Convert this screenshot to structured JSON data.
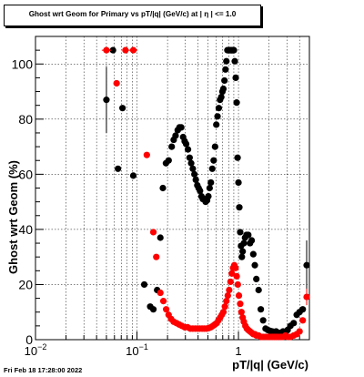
{
  "title": {
    "prefix": "Ghost wrt Geom for Primary vs pT/|q| (GeV/c) at |",
    "eta": "η",
    "suffix": "| <= 1.0"
  },
  "timestamp": "Fri Feb 18 17:28:00 2022",
  "colors": {
    "series_black": "#000000",
    "series_red": "#ff0000",
    "grid": "#000000",
    "frame": "#000000"
  },
  "chart_data": {
    "type": "scatter",
    "title": "Ghost wrt Geom for Primary vs pT/|q| (GeV/c) at | η | <= 1.0",
    "xlabel": "pT/|q| (GeV/c)",
    "ylabel": "Ghost wrt Geom (%)",
    "xscale": "log",
    "xlim": [
      0.01,
      5
    ],
    "ylim": [
      0,
      110
    ],
    "grid": true,
    "xticks": [
      {
        "value": 0.01,
        "base": "10",
        "exp": "−2"
      },
      {
        "value": 0.1,
        "base": "10",
        "exp": "−1"
      },
      {
        "value": 1,
        "base": "1",
        "exp": ""
      }
    ],
    "yticks": [
      0,
      20,
      40,
      60,
      80,
      100
    ],
    "series": [
      {
        "color": "#000000",
        "points": [
          {
            "x": 0.05,
            "y": 87,
            "err": 12
          },
          {
            "x": 0.058,
            "y": 105
          },
          {
            "x": 0.065,
            "y": 62
          },
          {
            "x": 0.072,
            "y": 84
          },
          {
            "x": 0.092,
            "y": 59.5
          },
          {
            "x": 0.118,
            "y": 20
          },
          {
            "x": 0.135,
            "y": 12
          },
          {
            "x": 0.145,
            "y": 11
          },
          {
            "x": 0.158,
            "y": 18
          },
          {
            "x": 0.17,
            "y": 37
          },
          {
            "x": 0.18,
            "y": 55
          },
          {
            "x": 0.193,
            "y": 64
          },
          {
            "x": 0.205,
            "y": 65
          },
          {
            "x": 0.22,
            "y": 70
          },
          {
            "x": 0.23,
            "y": 72.5
          },
          {
            "x": 0.24,
            "y": 74
          },
          {
            "x": 0.252,
            "y": 76
          },
          {
            "x": 0.262,
            "y": 77
          },
          {
            "x": 0.273,
            "y": 77
          },
          {
            "x": 0.285,
            "y": 73.5
          },
          {
            "x": 0.295,
            "y": 72
          },
          {
            "x": 0.305,
            "y": 71
          },
          {
            "x": 0.318,
            "y": 69
          },
          {
            "x": 0.33,
            "y": 66
          },
          {
            "x": 0.342,
            "y": 64
          },
          {
            "x": 0.355,
            "y": 62
          },
          {
            "x": 0.368,
            "y": 60
          },
          {
            "x": 0.38,
            "y": 58
          },
          {
            "x": 0.393,
            "y": 56
          },
          {
            "x": 0.405,
            "y": 55
          },
          {
            "x": 0.418,
            "y": 54
          },
          {
            "x": 0.432,
            "y": 52
          },
          {
            "x": 0.446,
            "y": 51
          },
          {
            "x": 0.46,
            "y": 51
          },
          {
            "x": 0.475,
            "y": 50
          },
          {
            "x": 0.49,
            "y": 50.5
          },
          {
            "x": 0.505,
            "y": 52
          },
          {
            "x": 0.52,
            "y": 55
          },
          {
            "x": 0.535,
            "y": 57
          },
          {
            "x": 0.552,
            "y": 62
          },
          {
            "x": 0.57,
            "y": 65
          },
          {
            "x": 0.588,
            "y": 70
          },
          {
            "x": 0.605,
            "y": 78
          },
          {
            "x": 0.622,
            "y": 81
          },
          {
            "x": 0.64,
            "y": 84
          },
          {
            "x": 0.658,
            "y": 87
          },
          {
            "x": 0.677,
            "y": 88
          },
          {
            "x": 0.695,
            "y": 90
          },
          {
            "x": 0.71,
            "y": 91
          },
          {
            "x": 0.728,
            "y": 94
          },
          {
            "x": 0.745,
            "y": 98
          },
          {
            "x": 0.76,
            "y": 101
          },
          {
            "x": 0.778,
            "y": 105
          },
          {
            "x": 0.795,
            "y": 105
          },
          {
            "x": 0.812,
            "y": 105
          },
          {
            "x": 0.83,
            "y": 105
          },
          {
            "x": 0.848,
            "y": 105
          },
          {
            "x": 0.866,
            "y": 105
          },
          {
            "x": 0.884,
            "y": 105
          },
          {
            "x": 0.902,
            "y": 105
          },
          {
            "x": 0.92,
            "y": 101
          },
          {
            "x": 0.94,
            "y": 95
          },
          {
            "x": 0.96,
            "y": 86
          },
          {
            "x": 0.98,
            "y": 66
          },
          {
            "x": 1.0,
            "y": 57
          },
          {
            "x": 1.02,
            "y": 48
          },
          {
            "x": 1.04,
            "y": 39
          },
          {
            "x": 1.06,
            "y": 34
          },
          {
            "x": 1.08,
            "y": 30
          },
          {
            "x": 1.1,
            "y": 32
          },
          {
            "x": 1.13,
            "y": 35
          },
          {
            "x": 1.16,
            "y": 37
          },
          {
            "x": 1.2,
            "y": 38
          },
          {
            "x": 1.25,
            "y": 38
          },
          {
            "x": 1.3,
            "y": 35
          },
          {
            "x": 1.35,
            "y": 36
          },
          {
            "x": 1.4,
            "y": 31
          },
          {
            "x": 1.45,
            "y": 27
          },
          {
            "x": 1.5,
            "y": 22
          },
          {
            "x": 1.58,
            "y": 18
          },
          {
            "x": 1.66,
            "y": 11
          },
          {
            "x": 1.75,
            "y": 7
          },
          {
            "x": 1.85,
            "y": 4
          },
          {
            "x": 1.95,
            "y": 3.5
          },
          {
            "x": 2.05,
            "y": 3.2
          },
          {
            "x": 2.15,
            "y": 3
          },
          {
            "x": 2.25,
            "y": 2.8
          },
          {
            "x": 2.35,
            "y": 3
          },
          {
            "x": 2.45,
            "y": 2.5
          },
          {
            "x": 2.6,
            "y": 2.5
          },
          {
            "x": 2.75,
            "y": 3
          },
          {
            "x": 2.9,
            "y": 2.5
          },
          {
            "x": 3.05,
            "y": 3.5
          },
          {
            "x": 3.25,
            "y": 5
          },
          {
            "x": 3.5,
            "y": 6
          },
          {
            "x": 3.75,
            "y": 9
          },
          {
            "x": 4.0,
            "y": 10
          },
          {
            "x": 4.3,
            "y": 11
          },
          {
            "x": 4.7,
            "y": 27,
            "err": 9
          }
        ]
      },
      {
        "color": "#ff0000",
        "points": [
          {
            "x": 0.05,
            "y": 105,
            "xerr": [
              0.045,
              0.056
            ]
          },
          {
            "x": 0.063,
            "y": 93
          },
          {
            "x": 0.077,
            "y": 105
          },
          {
            "x": 0.092,
            "y": 105,
            "xerr": [
              0.083,
              0.101
            ]
          },
          {
            "x": 0.125,
            "y": 67
          },
          {
            "x": 0.145,
            "y": 39
          },
          {
            "x": 0.155,
            "y": 30
          },
          {
            "x": 0.17,
            "y": 17
          },
          {
            "x": 0.182,
            "y": 14
          },
          {
            "x": 0.194,
            "y": 11
          },
          {
            "x": 0.205,
            "y": 9
          },
          {
            "x": 0.217,
            "y": 7.5
          },
          {
            "x": 0.23,
            "y": 6.5
          },
          {
            "x": 0.245,
            "y": 6
          },
          {
            "x": 0.26,
            "y": 5.5
          },
          {
            "x": 0.277,
            "y": 5
          },
          {
            "x": 0.295,
            "y": 4.5
          },
          {
            "x": 0.315,
            "y": 4.5
          },
          {
            "x": 0.335,
            "y": 4
          },
          {
            "x": 0.355,
            "y": 4
          },
          {
            "x": 0.375,
            "y": 4
          },
          {
            "x": 0.395,
            "y": 4
          },
          {
            "x": 0.415,
            "y": 4
          },
          {
            "x": 0.438,
            "y": 4
          },
          {
            "x": 0.46,
            "y": 4
          },
          {
            "x": 0.485,
            "y": 4
          },
          {
            "x": 0.51,
            "y": 4.2
          },
          {
            "x": 0.535,
            "y": 4.5
          },
          {
            "x": 0.56,
            "y": 5
          },
          {
            "x": 0.585,
            "y": 5.5
          },
          {
            "x": 0.61,
            "y": 6
          },
          {
            "x": 0.635,
            "y": 7
          },
          {
            "x": 0.66,
            "y": 8
          },
          {
            "x": 0.685,
            "y": 9
          },
          {
            "x": 0.71,
            "y": 10
          },
          {
            "x": 0.735,
            "y": 12
          },
          {
            "x": 0.76,
            "y": 14
          },
          {
            "x": 0.785,
            "y": 16
          },
          {
            "x": 0.81,
            "y": 18
          },
          {
            "x": 0.835,
            "y": 21
          },
          {
            "x": 0.86,
            "y": 24
          },
          {
            "x": 0.885,
            "y": 26
          },
          {
            "x": 0.91,
            "y": 27
          },
          {
            "x": 0.935,
            "y": 26
          },
          {
            "x": 0.96,
            "y": 23
          },
          {
            "x": 0.985,
            "y": 20
          },
          {
            "x": 1.01,
            "y": 16
          },
          {
            "x": 1.04,
            "y": 13
          },
          {
            "x": 1.07,
            "y": 10
          },
          {
            "x": 1.1,
            "y": 8
          },
          {
            "x": 1.13,
            "y": 6.5
          },
          {
            "x": 1.17,
            "y": 5
          },
          {
            "x": 1.21,
            "y": 4
          },
          {
            "x": 1.25,
            "y": 3.5
          },
          {
            "x": 1.3,
            "y": 3
          },
          {
            "x": 1.35,
            "y": 2.5
          },
          {
            "x": 1.4,
            "y": 2
          },
          {
            "x": 1.45,
            "y": 2
          },
          {
            "x": 1.5,
            "y": 1.5
          },
          {
            "x": 1.58,
            "y": 1.5
          },
          {
            "x": 1.66,
            "y": 1
          },
          {
            "x": 1.75,
            "y": 1
          },
          {
            "x": 1.85,
            "y": 1
          },
          {
            "x": 1.95,
            "y": 1
          },
          {
            "x": 2.05,
            "y": 1
          },
          {
            "x": 2.15,
            "y": 1
          },
          {
            "x": 2.25,
            "y": 1
          },
          {
            "x": 2.35,
            "y": 1
          },
          {
            "x": 2.45,
            "y": 1
          },
          {
            "x": 2.6,
            "y": 1
          },
          {
            "x": 2.75,
            "y": 1
          },
          {
            "x": 2.9,
            "y": 1.5
          },
          {
            "x": 3.05,
            "y": 1
          },
          {
            "x": 3.25,
            "y": 1
          },
          {
            "x": 3.5,
            "y": 1.5
          },
          {
            "x": 3.75,
            "y": 2
          },
          {
            "x": 4.0,
            "y": 3
          },
          {
            "x": 4.3,
            "y": 7
          },
          {
            "x": 4.7,
            "y": 15.5,
            "err": 3
          }
        ]
      }
    ]
  }
}
